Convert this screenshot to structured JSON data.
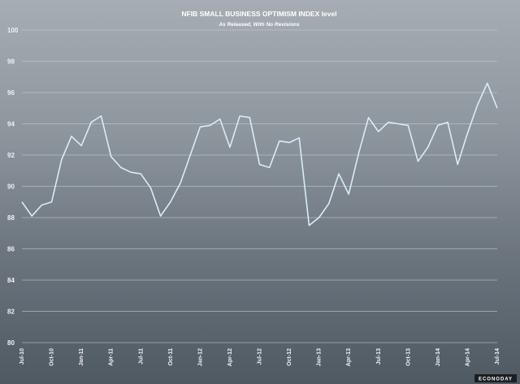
{
  "chart_data": {
    "type": "line",
    "title": "NFIB SMALL BUSINESS OPTIMISM INDEX level",
    "subtitle": "As Released, With No Revisions",
    "xlabel": "",
    "ylabel": "",
    "ylim": [
      80,
      100
    ],
    "y_ticks": [
      80,
      82,
      84,
      86,
      88,
      90,
      92,
      94,
      96,
      98,
      100
    ],
    "grid": true,
    "x_tick_labels": [
      "Jul-10",
      "Oct-10",
      "Jan-11",
      "Apr-11",
      "Jul-11",
      "Oct-11",
      "Jan-12",
      "Apr-12",
      "Jul-12",
      "Oct-12",
      "Jan-13",
      "Apr-13",
      "Jul-13",
      "Oct-13",
      "Jan-14",
      "Apr-14",
      "Jul-14"
    ],
    "x": [
      "Jul-10",
      "Aug-10",
      "Sep-10",
      "Oct-10",
      "Nov-10",
      "Dec-10",
      "Jan-11",
      "Feb-11",
      "Mar-11",
      "Apr-11",
      "May-11",
      "Jun-11",
      "Jul-11",
      "Aug-11",
      "Sep-11",
      "Oct-11",
      "Nov-11",
      "Dec-11",
      "Jan-12",
      "Feb-12",
      "Mar-12",
      "Apr-12",
      "May-12",
      "Jun-12",
      "Jul-12",
      "Aug-12",
      "Sep-12",
      "Oct-12",
      "Nov-12",
      "Dec-12",
      "Jan-13",
      "Feb-13",
      "Mar-13",
      "Apr-13",
      "May-13",
      "Jun-13",
      "Jul-13",
      "Aug-13",
      "Sep-13",
      "Oct-13",
      "Nov-13",
      "Dec-13",
      "Jan-14",
      "Feb-14",
      "Mar-14",
      "Apr-14",
      "May-14",
      "Jun-14",
      "Jul-14"
    ],
    "series": [
      {
        "values": [
          89.0,
          88.1,
          88.8,
          89.0,
          91.7,
          93.2,
          92.6,
          94.1,
          94.5,
          91.9,
          91.2,
          90.9,
          90.8,
          89.9,
          88.1,
          89.0,
          90.2,
          92.0,
          93.8,
          93.9,
          94.3,
          92.5,
          94.5,
          94.4,
          91.4,
          91.2,
          92.9,
          92.8,
          93.1,
          87.5,
          88.0,
          88.9,
          90.8,
          89.5,
          92.1,
          94.4,
          93.5,
          94.1,
          94.0,
          93.9,
          91.6,
          92.5,
          93.9,
          94.1,
          91.4,
          93.4,
          95.2,
          96.6,
          95.0
        ],
        "color": "#d9ecf7"
      }
    ]
  },
  "watermark": "ECONODAY"
}
